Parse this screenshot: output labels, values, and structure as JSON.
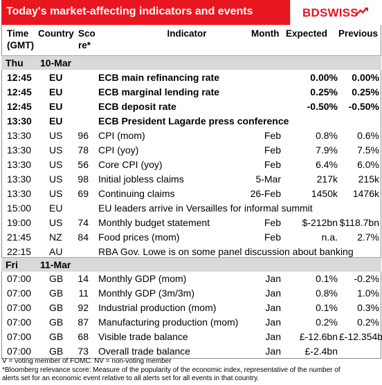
{
  "header": {
    "title": "Today's market-affecting indicators and events",
    "logo": "BDSWISS"
  },
  "columns": {
    "time": [
      "Time",
      "(GMT)"
    ],
    "country": "Country",
    "score": [
      "Sco",
      "re*"
    ],
    "indicator": "Indicator",
    "month": "Month",
    "expected": "Expected",
    "previous": "Previous"
  },
  "day1": {
    "day": "Thu",
    "date": "10-Mar"
  },
  "day1_rows": [
    {
      "time": "12:45",
      "country": "EU",
      "score": "",
      "indicator": "ECB main refinancing rate",
      "month": "",
      "expected": "0.00%",
      "previous": "0.00%",
      "bold": true
    },
    {
      "time": "12:45",
      "country": "EU",
      "score": "",
      "indicator": "ECB marginal lending rate",
      "month": "",
      "expected": "0.25%",
      "previous": "0.25%",
      "bold": true
    },
    {
      "time": "12:45",
      "country": "EU",
      "score": "",
      "indicator": "ECB deposit rate",
      "month": "",
      "expected": "-0.50%",
      "previous": "-0.50%",
      "bold": true
    },
    {
      "time": "13:30",
      "country": "EU",
      "score": "",
      "indicator": "ECB President Lagarde press conference",
      "month": "",
      "expected": "",
      "previous": "",
      "bold": true
    },
    {
      "time": "13:30",
      "country": "US",
      "score": "96",
      "indicator": "CPI (mom)",
      "month": "Feb",
      "expected": "0.8%",
      "previous": "0.6%",
      "bold": false
    },
    {
      "time": "13:30",
      "country": "US",
      "score": "78",
      "indicator": "CPI (yoy)",
      "month": "Feb",
      "expected": "7.9%",
      "previous": "7.5%",
      "bold": false
    },
    {
      "time": "13:30",
      "country": "US",
      "score": "56",
      "indicator": "Core CPI (yoy)",
      "month": "Feb",
      "expected": "6.4%",
      "previous": "6.0%",
      "bold": false
    },
    {
      "time": "13:30",
      "country": "US",
      "score": "98",
      "indicator": "Initial jobless claims",
      "month": "5-Mar",
      "expected": "217k",
      "previous": "215k",
      "bold": false
    },
    {
      "time": "13:30",
      "country": "US",
      "score": "69",
      "indicator": "Continuing claims",
      "month": "26-Feb",
      "expected": "1450k",
      "previous": "1476k",
      "bold": false
    },
    {
      "time": "15:00",
      "country": "EU",
      "score": "",
      "indicator": "EU leaders arrive in Versailles for informal summit",
      "month": "",
      "expected": "",
      "previous": "",
      "bold": false
    },
    {
      "time": "19:00",
      "country": "US",
      "score": "74",
      "indicator": "Monthly budget statement",
      "month": "Feb",
      "expected": "$-212bn",
      "previous": "$118.7bn",
      "bold": false
    },
    {
      "time": "21:45",
      "country": "NZ",
      "score": "84",
      "indicator": "Food prices (mom)",
      "month": "Feb",
      "expected": "n.a.",
      "previous": "2.7%",
      "bold": false
    },
    {
      "time": "22:15",
      "country": "AU",
      "score": "",
      "indicator": "RBA Gov. Lowe is on some panel discussion about banking",
      "month": "",
      "expected": "",
      "previous": "",
      "bold": false
    }
  ],
  "day2": {
    "day": "Fri",
    "date": "11-Mar"
  },
  "day2_rows": [
    {
      "time": "07:00",
      "country": "GB",
      "score": "14",
      "indicator": "Monthly GDP (mom)",
      "month": "Jan",
      "expected": "0.1%",
      "previous": "-0.2%",
      "bold": false
    },
    {
      "time": "07:00",
      "country": "GB",
      "score": "11",
      "indicator": "Monthly GDP (3m/3m)",
      "month": "Jan",
      "expected": "0.8%",
      "previous": "1.0%",
      "bold": false
    },
    {
      "time": "07:00",
      "country": "GB",
      "score": "92",
      "indicator": "Industrial production (mom)",
      "month": "Jan",
      "expected": "0.1%",
      "previous": "0.3%",
      "bold": false
    },
    {
      "time": "07:00",
      "country": "GB",
      "score": "87",
      "indicator": "Manufacturing production (mom)",
      "month": "Jan",
      "expected": "0.2%",
      "previous": "0.2%",
      "bold": false
    },
    {
      "time": "07:00",
      "country": "GB",
      "score": "68",
      "indicator": "Visible trade balance",
      "month": "Jan",
      "expected": "£-12.6bn",
      "previous": "£-12.354bn",
      "bold": false
    },
    {
      "time": "07:00",
      "country": "GB",
      "score": "73",
      "indicator": "Overall trade balance",
      "month": "Jan",
      "expected": "£-2.4bn",
      "previous": "",
      "bold": false
    }
  ],
  "footer": {
    "line1": "V = voting member of FOMC. NV = non-voting member",
    "line2": "*Bloomberg relevance score:  Measure of the popularity of the economic index, representative of the number of",
    "line3": "alerts set for an economic event relative to all alerts set for all events in that country."
  },
  "colors": {
    "header_red": "#e8161e",
    "separator_gray": "#d9d9d9"
  }
}
